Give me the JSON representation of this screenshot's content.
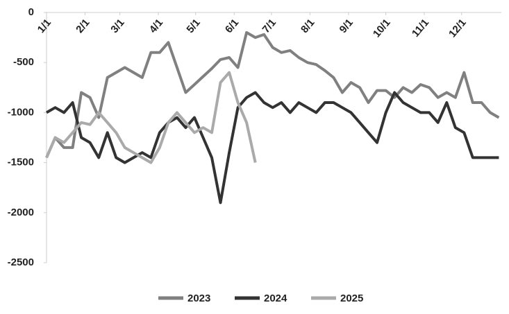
{
  "chart_data": {
    "type": "line",
    "x": [
      0,
      7,
      14,
      21,
      28,
      35,
      42,
      49,
      56,
      63,
      70,
      77,
      84,
      91,
      98,
      105,
      112,
      119,
      126,
      133,
      140,
      147,
      154,
      161,
      168,
      175,
      182,
      189,
      196,
      203,
      210,
      217,
      224,
      231,
      238,
      245,
      252,
      259,
      266,
      273,
      280,
      287,
      294,
      301,
      308,
      315,
      322,
      329,
      336,
      343,
      350,
      357,
      364
    ],
    "xlim": [
      0,
      366
    ],
    "xticks": [
      {
        "value": 0,
        "label": "1/1"
      },
      {
        "value": 31,
        "label": "2/1"
      },
      {
        "value": 59,
        "label": "3/1"
      },
      {
        "value": 90,
        "label": "4/1"
      },
      {
        "value": 120,
        "label": "5/1"
      },
      {
        "value": 151,
        "label": "6/1"
      },
      {
        "value": 181,
        "label": "7/1"
      },
      {
        "value": 212,
        "label": "8/1"
      },
      {
        "value": 243,
        "label": "9/1"
      },
      {
        "value": 273,
        "label": "10/1"
      },
      {
        "value": 304,
        "label": "11/1"
      },
      {
        "value": 334,
        "label": "12/1"
      }
    ],
    "ylim": [
      -2500,
      0
    ],
    "yticks": [
      0,
      -500,
      -1000,
      -1500,
      -2000,
      -2500
    ],
    "series": [
      {
        "name": "2023",
        "color": "#808080",
        "values": [
          -1450,
          -1250,
          -1350,
          -1350,
          -800,
          -850,
          -1050,
          -650,
          -600,
          -550,
          -600,
          -650,
          -400,
          -400,
          -300,
          -550,
          -800,
          -720,
          -640,
          -560,
          -470,
          -450,
          -550,
          -200,
          -250,
          -220,
          -350,
          -400,
          -380,
          -450,
          -500,
          -520,
          -580,
          -650,
          -800,
          -700,
          -750,
          -900,
          -780,
          -780,
          -850,
          -750,
          -800,
          -720,
          -750,
          -850,
          -800,
          -850,
          -600,
          -900,
          -900,
          -1000,
          -1050
        ]
      },
      {
        "name": "2024",
        "color": "#333333",
        "values": [
          -1000,
          -950,
          -1000,
          -900,
          -1250,
          -1300,
          -1450,
          -1200,
          -1450,
          -1500,
          -1450,
          -1400,
          -1450,
          -1200,
          -1100,
          -1050,
          -1150,
          -1050,
          -1250,
          -1450,
          -1900,
          -1400,
          -950,
          -850,
          -800,
          -900,
          -950,
          -900,
          -1000,
          -900,
          -950,
          -1000,
          -900,
          -900,
          -950,
          -1000,
          -1100,
          -1200,
          -1300,
          -1000,
          -800,
          -900,
          -950,
          -1000,
          -1000,
          -1100,
          -900,
          -1150,
          -1200,
          -1450,
          -1450,
          -1450,
          -1450
        ]
      },
      {
        "name": "2025",
        "color": "#aaaaaa",
        "values": [
          -1450,
          -1250,
          -1300,
          -1200,
          -1100,
          -1120,
          -1000,
          -1100,
          -1200,
          -1350,
          -1400,
          -1450,
          -1500,
          -1350,
          -1100,
          -1000,
          -1100,
          -1200,
          -1150,
          -1200,
          -700,
          -600,
          -900,
          -1100,
          -1500,
          null,
          null,
          null,
          null,
          null,
          null,
          null,
          null,
          null,
          null,
          null,
          null,
          null,
          null,
          null,
          null,
          null,
          null,
          null,
          null,
          null,
          null,
          null,
          null,
          null,
          null,
          null,
          null
        ]
      }
    ]
  }
}
